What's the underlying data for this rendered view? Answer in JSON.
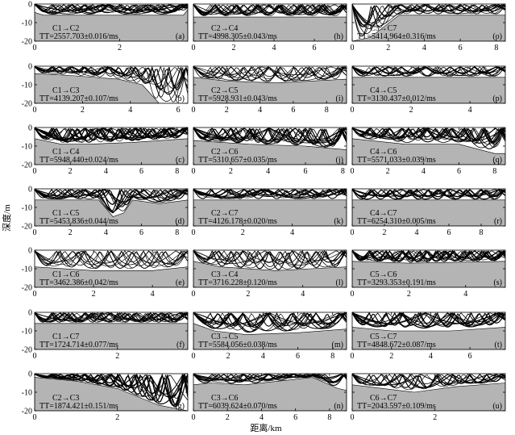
{
  "figure": {
    "ylabel": "深度/m",
    "xlabel": "距离/km"
  },
  "chart_data": [
    {
      "type": "line",
      "panel": "(a)",
      "route": "C1→C2",
      "tt": "TT=2557.703±0.016/ms",
      "xlim": [
        0,
        3.6
      ],
      "xticks": [
        0,
        2
      ],
      "ylim": [
        -20,
        0
      ],
      "yticks": [
        0,
        -10,
        -20
      ],
      "seabed": [
        [
          0,
          -4.5
        ],
        [
          0.2,
          -6
        ],
        [
          3.5,
          -6
        ],
        [
          3.6,
          -3
        ]
      ],
      "show_xticks": true,
      "show_yticks": true
    },
    {
      "type": "line",
      "panel": "(h)",
      "route": "C2→C4",
      "tt": "TT=4998.305±0.043/ms",
      "xlim": [
        0,
        7.6
      ],
      "xticks": [
        0,
        2,
        4,
        6
      ],
      "ylim": [
        -20,
        0
      ],
      "yticks": [
        0,
        -10,
        -20
      ],
      "seabed": [
        [
          0,
          -7
        ],
        [
          7.6,
          -7
        ]
      ],
      "show_xticks": true,
      "show_yticks": false
    },
    {
      "type": "line",
      "panel": "(o)",
      "route": "C3→C7",
      "tt": "TT=5414.964±0.316/ms",
      "xlim": [
        0,
        8.5
      ],
      "xticks": [
        0,
        2,
        4,
        6,
        8
      ],
      "ylim": [
        -20,
        0
      ],
      "yticks": [
        0,
        -10,
        -20
      ],
      "seabed": [
        [
          0,
          -20
        ],
        [
          1.0,
          -18
        ],
        [
          2.6,
          -6
        ],
        [
          8.5,
          -6
        ]
      ],
      "show_xticks": true,
      "show_yticks": false
    },
    {
      "type": "line",
      "panel": "(b)",
      "route": "C1→C3",
      "tt": "TT=4139.207±0.107/ms",
      "xlim": [
        0,
        6.4
      ],
      "xticks": [
        0,
        2,
        4,
        6
      ],
      "ylim": [
        -20,
        0
      ],
      "yticks": [
        0,
        -10,
        -20
      ],
      "seabed": [
        [
          0,
          -4
        ],
        [
          1.5,
          -5
        ],
        [
          3.5,
          -7
        ],
        [
          4.5,
          -10
        ],
        [
          5.2,
          -20
        ],
        [
          6.4,
          -20
        ]
      ],
      "show_xticks": true,
      "show_yticks": true
    },
    {
      "type": "line",
      "panel": "(i)",
      "route": "C2→C5",
      "tt": "TT=5928.931±0.043/ms",
      "xlim": [
        0,
        9.2
      ],
      "xticks": [
        0,
        2,
        4,
        6,
        8
      ],
      "ylim": [
        -20,
        0
      ],
      "yticks": [
        0,
        -10,
        -20
      ],
      "seabed": [
        [
          0,
          -6
        ],
        [
          2,
          -8
        ],
        [
          5,
          -9
        ],
        [
          9.2,
          -7
        ]
      ],
      "show_xticks": true,
      "show_yticks": false
    },
    {
      "type": "line",
      "panel": "(p)",
      "route": "C4→C5",
      "tt": "TT=3130.437±0.012/ms",
      "xlim": [
        0,
        5.2
      ],
      "xticks": [
        0,
        2,
        4
      ],
      "ylim": [
        -20,
        0
      ],
      "yticks": [
        0,
        -10,
        -20
      ],
      "seabed": [
        [
          0,
          -6
        ],
        [
          5.2,
          -6
        ]
      ],
      "show_xticks": true,
      "show_yticks": false
    },
    {
      "type": "line",
      "panel": "(c)",
      "route": "C1→C4",
      "tt": "TT=5948.440±0.024/ms",
      "xlim": [
        0,
        8.6
      ],
      "xticks": [
        0,
        2,
        4,
        6,
        8
      ],
      "ylim": [
        -20,
        0
      ],
      "yticks": [
        0,
        -10,
        -20
      ],
      "seabed": [
        [
          0,
          -6
        ],
        [
          1.5,
          -9
        ],
        [
          3,
          -9
        ],
        [
          5.5,
          -8
        ],
        [
          8.6,
          -6
        ]
      ],
      "show_xticks": true,
      "show_yticks": true
    },
    {
      "type": "line",
      "panel": "(j)",
      "route": "C2→C6",
      "tt": "TT=5310.657±0.035/ms",
      "xlim": [
        0,
        8.2
      ],
      "xticks": [
        0,
        2,
        4,
        6,
        8
      ],
      "ylim": [
        -20,
        0
      ],
      "yticks": [
        0,
        -10,
        -20
      ],
      "seabed": [
        [
          0,
          -7
        ],
        [
          3,
          -9
        ],
        [
          6,
          -10
        ],
        [
          8.2,
          -12
        ]
      ],
      "show_xticks": true,
      "show_yticks": false
    },
    {
      "type": "line",
      "panel": "(q)",
      "route": "C4→C6",
      "tt": "TT=5571.033±0.039/ms",
      "xlim": [
        0,
        8.6
      ],
      "xticks": [
        0,
        2,
        4,
        6,
        8
      ],
      "ylim": [
        -20,
        0
      ],
      "yticks": [
        0,
        -10,
        -20
      ],
      "seabed": [
        [
          0,
          -6
        ],
        [
          3,
          -9
        ],
        [
          6,
          -9
        ],
        [
          8,
          -14
        ],
        [
          8.6,
          -14
        ]
      ],
      "show_xticks": true,
      "show_yticks": false
    },
    {
      "type": "line",
      "panel": "(d)",
      "route": "C1→C5",
      "tt": "TT=5453.836±0.044/ms",
      "xlim": [
        0,
        8.6
      ],
      "xticks": [
        0,
        2,
        4,
        6,
        8
      ],
      "ylim": [
        -20,
        0
      ],
      "yticks": [
        0,
        -10,
        -20
      ],
      "seabed": [
        [
          0,
          -6
        ],
        [
          3.6,
          -6
        ],
        [
          4.4,
          -15
        ],
        [
          5.0,
          -13
        ],
        [
          5.5,
          -6
        ],
        [
          7,
          -8
        ],
        [
          8.6,
          -6
        ]
      ],
      "show_xticks": true,
      "show_yticks": true
    },
    {
      "type": "line",
      "panel": "(k)",
      "route": "C2→C7",
      "tt": "TT=4126.178±0.020/ms",
      "xlim": [
        0,
        6.2
      ],
      "xticks": [
        0,
        2,
        4
      ],
      "ylim": [
        -20,
        0
      ],
      "yticks": [
        0,
        -10,
        -20
      ],
      "seabed": [
        [
          0,
          -6
        ],
        [
          6.2,
          -6
        ]
      ],
      "show_xticks": true,
      "show_yticks": false
    },
    {
      "type": "line",
      "panel": "(r)",
      "route": "C4→C7",
      "tt": "TT=6254.310±0.005/ms",
      "xlim": [
        0,
        9.5
      ],
      "xticks": [
        0,
        2,
        4,
        6,
        8
      ],
      "ylim": [
        -20,
        0
      ],
      "yticks": [
        0,
        -10,
        -20
      ],
      "seabed": [
        [
          0,
          -6
        ],
        [
          9.5,
          -6
        ]
      ],
      "show_xticks": true,
      "show_yticks": false
    },
    {
      "type": "line",
      "panel": "(e)",
      "route": "C1→C6",
      "tt": "TT=3462.386±0.042/ms",
      "xlim": [
        0,
        5.2
      ],
      "xticks": [
        0,
        2,
        4
      ],
      "ylim": [
        -20,
        0
      ],
      "yticks": [
        0,
        -10,
        -20
      ],
      "seabed": [
        [
          0,
          -9
        ],
        [
          2,
          -11
        ],
        [
          4,
          -11
        ],
        [
          5.2,
          -9
        ]
      ],
      "show_xticks": true,
      "show_yticks": true
    },
    {
      "type": "line",
      "panel": "(l)",
      "route": "C3→C4",
      "tt": "TT=3716.228±0.120/ms",
      "xlim": [
        0,
        5.6
      ],
      "xticks": [
        0,
        2,
        4
      ],
      "ylim": [
        -20,
        0
      ],
      "yticks": [
        0,
        -10,
        -20
      ],
      "seabed": [
        [
          0,
          -6
        ],
        [
          1,
          -9
        ],
        [
          3,
          -11
        ],
        [
          5.6,
          -9
        ]
      ],
      "show_xticks": true,
      "show_yticks": false
    },
    {
      "type": "line",
      "panel": "(s)",
      "route": "C5→C6",
      "tt": "TT=3293.353±0.191/ms",
      "xlim": [
        0,
        5.4
      ],
      "xticks": [
        0,
        2,
        4
      ],
      "ylim": [
        -20,
        0
      ],
      "yticks": [
        0,
        -10,
        -20
      ],
      "seabed": [
        [
          0,
          -6
        ],
        [
          2,
          -7
        ],
        [
          5.4,
          -6
        ]
      ],
      "show_xticks": true,
      "show_yticks": false
    },
    {
      "type": "line",
      "panel": "(f)",
      "route": "C1→C7",
      "tt": "TT=1724.714±0.077/ms",
      "xlim": [
        0,
        3.7
      ],
      "xticks": [
        0,
        2
      ],
      "ylim": [
        -20,
        0
      ],
      "yticks": [
        0,
        -10,
        -20
      ],
      "seabed": [
        [
          0,
          -6
        ],
        [
          3.7,
          -6
        ]
      ],
      "show_xticks": true,
      "show_yticks": true
    },
    {
      "type": "line",
      "panel": "(m)",
      "route": "C3→C5",
      "tt": "TT=5584.056±0.038/ms",
      "xlim": [
        0,
        8.8
      ],
      "xticks": [
        0,
        2,
        4,
        6,
        8
      ],
      "ylim": [
        -20,
        0
      ],
      "yticks": [
        0,
        -10,
        -20
      ],
      "seabed": [
        [
          0,
          -6
        ],
        [
          1.2,
          -10
        ],
        [
          3,
          -12
        ],
        [
          6,
          -11
        ],
        [
          8.8,
          -9
        ]
      ],
      "show_xticks": true,
      "show_yticks": false
    },
    {
      "type": "line",
      "panel": "(t)",
      "route": "C5→C7",
      "tt": "TT=4848.672±0.087/ms",
      "xlim": [
        0,
        7.8
      ],
      "xticks": [
        0,
        2,
        4,
        6
      ],
      "ylim": [
        -20,
        0
      ],
      "yticks": [
        0,
        -10,
        -20
      ],
      "seabed": [
        [
          0,
          -8
        ],
        [
          2,
          -10
        ],
        [
          5,
          -10
        ],
        [
          7.8,
          -8
        ]
      ],
      "show_xticks": true,
      "show_yticks": false
    },
    {
      "type": "line",
      "panel": "(g)",
      "route": "C2→C3",
      "tt": "TT=1874.421±0.151/ms",
      "xlim": [
        0,
        3.7
      ],
      "xticks": [
        0,
        2
      ],
      "ylim": [
        -20,
        0
      ],
      "yticks": [
        0,
        -10,
        -20
      ],
      "seabed": [
        [
          0,
          -2
        ],
        [
          1.0,
          -4
        ],
        [
          2.0,
          -8
        ],
        [
          3.0,
          -17
        ],
        [
          3.7,
          -20
        ]
      ],
      "show_xticks": true,
      "show_yticks": true
    },
    {
      "type": "line",
      "panel": "(n)",
      "route": "C3→C6",
      "tt": "TT=6039.624±0.070/ms",
      "xlim": [
        0,
        9.0
      ],
      "xticks": [
        0,
        2,
        4,
        6,
        8
      ],
      "ylim": [
        -20,
        0
      ],
      "yticks": [
        0,
        -10,
        -20
      ],
      "seabed": [
        [
          0,
          -6
        ],
        [
          1,
          -5
        ],
        [
          3,
          -6
        ],
        [
          6,
          -3
        ],
        [
          7,
          -2
        ],
        [
          8.5,
          -8
        ],
        [
          9.0,
          -9
        ]
      ],
      "show_xticks": true,
      "show_yticks": false
    },
    {
      "type": "line",
      "panel": "(u)",
      "route": "C6→C7",
      "tt": "TT=2043.597±0.109/ms",
      "xlim": [
        0,
        3.7
      ],
      "xticks": [
        0,
        2
      ],
      "ylim": [
        -20,
        0
      ],
      "yticks": [
        0,
        -10,
        -20
      ],
      "seabed": [
        [
          0,
          -6
        ],
        [
          1.5,
          -10
        ],
        [
          2.5,
          -7
        ],
        [
          3.7,
          -5
        ]
      ],
      "show_xticks": true,
      "show_yticks": false
    }
  ]
}
